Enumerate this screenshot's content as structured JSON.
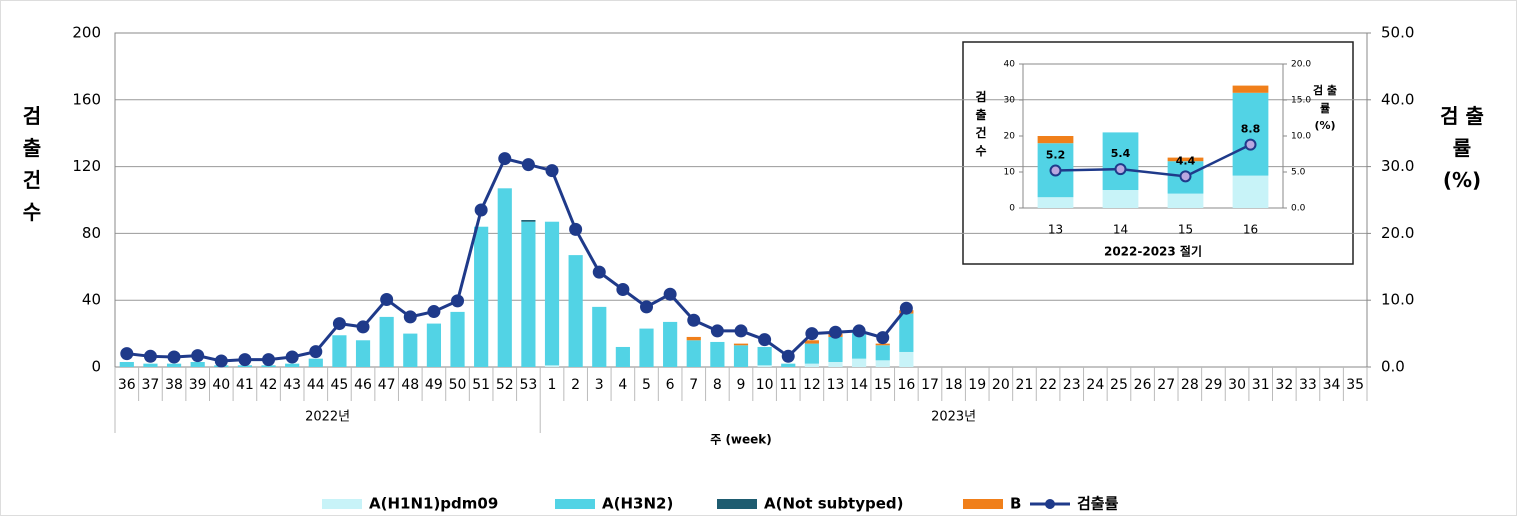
{
  "chart_data": [
    {
      "type": "bar",
      "categories": [
        "36",
        "37",
        "38",
        "39",
        "40",
        "41",
        "42",
        "43",
        "44",
        "45",
        "46",
        "47",
        "48",
        "49",
        "50",
        "51",
        "52",
        "53",
        "1",
        "2",
        "3",
        "4",
        "5",
        "6",
        "7",
        "8",
        "9",
        "10",
        "11",
        "12",
        "13",
        "14",
        "15",
        "16",
        "17",
        "18",
        "19",
        "20",
        "21",
        "22",
        "23",
        "24",
        "25",
        "26",
        "27",
        "28",
        "29",
        "30",
        "31",
        "32",
        "33",
        "34",
        "35"
      ],
      "groups": [
        {
          "label": "2022년",
          "start": "36"
        },
        {
          "label": "2023년",
          "start": "1"
        }
      ],
      "x_label": "주 (week)",
      "y_label": "검 출 건 수",
      "y2_label": "검 출 률 (%)",
      "ylim": [
        0,
        200
      ],
      "yticks": [
        0,
        40,
        80,
        120,
        160,
        200
      ],
      "y2lim": [
        0,
        50
      ],
      "y2ticks": [
        {
          "value": 0,
          "label": "0.0"
        },
        {
          "value": 10,
          "label": "10.0"
        },
        {
          "value": 20,
          "label": "20.0"
        },
        {
          "value": 30,
          "label": "30.0"
        },
        {
          "value": 40,
          "label": "40.0"
        },
        {
          "value": 50,
          "label": "50.0"
        }
      ],
      "grid": true,
      "legend": "bottom",
      "series": [
        {
          "name": "A(H1N1)pdm09",
          "color": "#c8f3f8",
          "values": [
            0,
            0,
            0,
            0,
            0,
            0,
            0,
            0,
            0,
            0,
            0,
            0,
            0,
            0,
            0,
            0,
            0,
            0,
            1,
            0,
            0,
            0,
            0,
            0,
            0,
            0,
            0,
            1,
            0,
            2,
            3,
            5,
            4,
            9,
            null,
            null,
            null,
            null,
            null,
            null,
            null,
            null,
            null,
            null,
            null,
            null,
            null,
            null,
            null,
            null,
            null,
            null,
            null
          ]
        },
        {
          "name": "A(H3N2)",
          "color": "#52d3e5",
          "values": [
            3,
            2,
            2,
            3,
            1,
            1,
            1,
            2,
            5,
            19,
            16,
            30,
            20,
            26,
            33,
            84,
            107,
            87,
            86,
            67,
            36,
            12,
            23,
            27,
            16,
            15,
            13,
            11,
            2,
            12,
            15,
            16,
            9,
            23,
            null,
            null,
            null,
            null,
            null,
            null,
            null,
            null,
            null,
            null,
            null,
            null,
            null,
            null,
            null,
            null,
            null,
            null,
            null
          ]
        },
        {
          "name": "A(Not subtyped)",
          "color": "#1e5c70",
          "values": [
            0,
            0,
            0,
            0,
            0,
            0,
            0,
            0,
            0,
            0,
            0,
            0,
            0,
            0,
            0,
            0,
            0,
            1,
            0,
            0,
            0,
            0,
            0,
            0,
            0,
            0,
            0,
            0,
            0,
            0,
            0,
            0,
            0,
            0,
            null,
            null,
            null,
            null,
            null,
            null,
            null,
            null,
            null,
            null,
            null,
            null,
            null,
            null,
            null,
            null,
            null,
            null,
            null
          ]
        },
        {
          "name": "B",
          "color": "#f07f1a",
          "values": [
            0,
            0,
            0,
            0,
            0,
            0,
            0,
            0,
            0,
            0,
            0,
            0,
            0,
            0,
            0,
            0,
            0,
            0,
            0,
            0,
            0,
            0,
            0,
            0,
            2,
            0,
            1,
            0,
            0,
            2,
            2,
            0,
            1,
            2,
            null,
            null,
            null,
            null,
            null,
            null,
            null,
            null,
            null,
            null,
            null,
            null,
            null,
            null,
            null,
            null,
            null,
            null,
            null
          ]
        },
        {
          "name": "검출률",
          "color": "#1f3a8a",
          "type": "line",
          "axis": "y2",
          "values": [
            2.0,
            1.6,
            1.5,
            1.7,
            0.9,
            1.1,
            1.1,
            1.5,
            2.3,
            6.5,
            6.0,
            10.1,
            7.5,
            8.3,
            9.9,
            23.5,
            31.2,
            30.3,
            29.4,
            20.6,
            14.2,
            11.6,
            9.0,
            10.9,
            7.0,
            5.4,
            5.4,
            4.1,
            1.6,
            5.0,
            5.2,
            5.4,
            4.4,
            8.8,
            null,
            null,
            null,
            null,
            null,
            null,
            null,
            null,
            null,
            null,
            null,
            null,
            null,
            null,
            null,
            null,
            null,
            null,
            null
          ]
        }
      ]
    },
    {
      "type": "bar",
      "categories": [
        "13",
        "14",
        "15",
        "16"
      ],
      "x_label": "2022-2023 절기",
      "y_label": "검 출 건 수",
      "y2_label": "검 출 률 (%)",
      "ylim": [
        0,
        40
      ],
      "yticks": [
        0,
        10,
        20,
        30,
        40
      ],
      "y2lim": [
        0,
        20
      ],
      "y2ticks": [
        {
          "value": 0,
          "label": "0.0"
        },
        {
          "value": 5,
          "label": "5.0"
        },
        {
          "value": 10,
          "label": "10.0"
        },
        {
          "value": 15,
          "label": "15.0"
        },
        {
          "value": 20,
          "label": "20.0"
        }
      ],
      "grid": false,
      "data_labels": true,
      "series": [
        {
          "name": "A(H1N1)pdm09",
          "color": "#c8f3f8",
          "values": [
            3,
            5,
            4,
            9
          ]
        },
        {
          "name": "A(H3N2)",
          "color": "#52d3e5",
          "values": [
            15,
            16,
            9,
            23
          ]
        },
        {
          "name": "A(Not subtyped)",
          "color": "#1e5c70",
          "values": [
            0,
            0,
            0,
            0
          ]
        },
        {
          "name": "B",
          "color": "#f07f1a",
          "values": [
            2,
            0,
            1,
            2
          ]
        },
        {
          "name": "검출률",
          "color": "#1f3a8a",
          "type": "line",
          "axis": "y2",
          "values": [
            5.2,
            5.4,
            4.4,
            8.8
          ]
        }
      ]
    }
  ]
}
